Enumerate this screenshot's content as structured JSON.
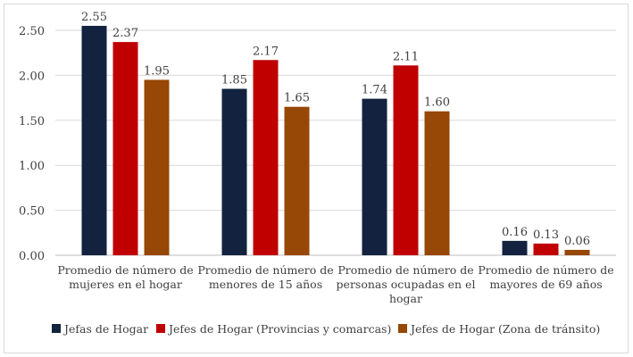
{
  "chart_data": {
    "type": "bar",
    "categories": [
      [
        "Promedio de número de",
        "mujeres en el hogar"
      ],
      [
        "Promedio de número de",
        "menores de 15 años"
      ],
      [
        "Promedio de número de",
        "personas ocupadas en el",
        "hogar"
      ],
      [
        "Promedio de número de",
        "mayores de 69 años"
      ]
    ],
    "series": [
      {
        "name": "Jefas de Hogar",
        "color": "#12223f",
        "values": [
          2.55,
          1.85,
          1.74,
          0.16
        ],
        "labels": [
          "2.55",
          "1.85",
          "1.74",
          "0.16"
        ]
      },
      {
        "name": "Jefes de Hogar (Provincias y comarcas)",
        "color": "#c00000",
        "values": [
          2.37,
          2.17,
          2.11,
          0.13
        ],
        "labels": [
          "2.37",
          "2.17",
          "2.11",
          "0.13"
        ]
      },
      {
        "name": "Jefes de Hogar (Zona de tránsito)",
        "color": "#974706",
        "values": [
          1.95,
          1.65,
          1.6,
          0.06
        ],
        "labels": [
          "1.95",
          "1.65",
          "1.60",
          "0.06"
        ]
      }
    ],
    "y_ticks": [
      "0.00",
      "0.50",
      "1.00",
      "1.50",
      "2.00",
      "2.50"
    ],
    "ylim": [
      0,
      2.5
    ],
    "grid": true,
    "legend_position": "bottom",
    "title": "",
    "xlabel": "",
    "ylabel": ""
  }
}
